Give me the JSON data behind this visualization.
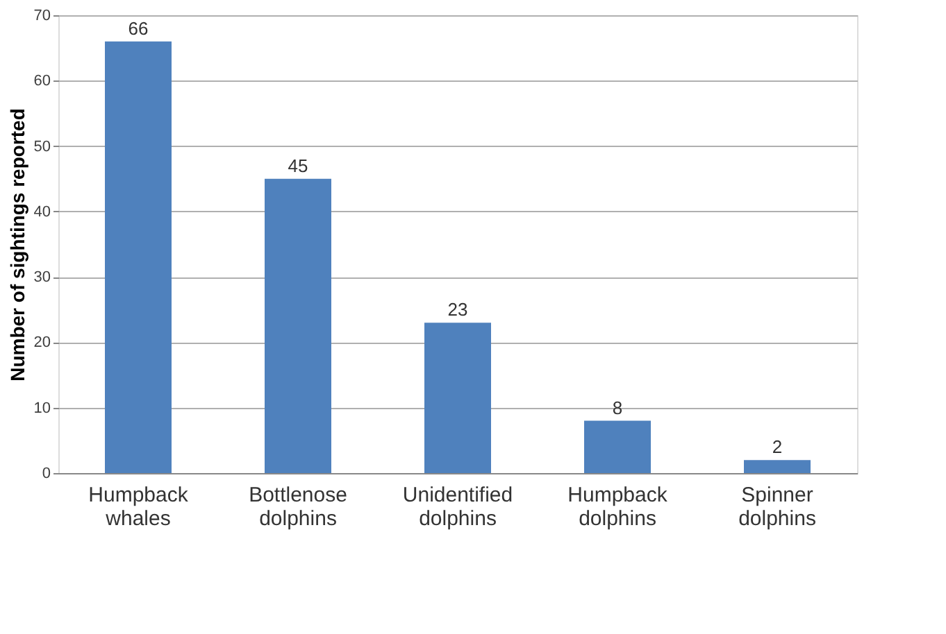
{
  "chart_data": {
    "type": "bar",
    "ylabel": "Number of sightings reported",
    "categories": [
      "Humpback whales",
      "Bottlenose dolphins",
      "Unidentified dolphins",
      "Humpback dolphins",
      "Spinner dolphins"
    ],
    "values": [
      66,
      45,
      23,
      8,
      2
    ],
    "color": "#4f81bd",
    "ylim": [
      0,
      70
    ],
    "yticks": [
      0,
      10,
      20,
      30,
      40,
      50,
      60,
      70
    ],
    "grid": "y",
    "data_labels": true
  }
}
